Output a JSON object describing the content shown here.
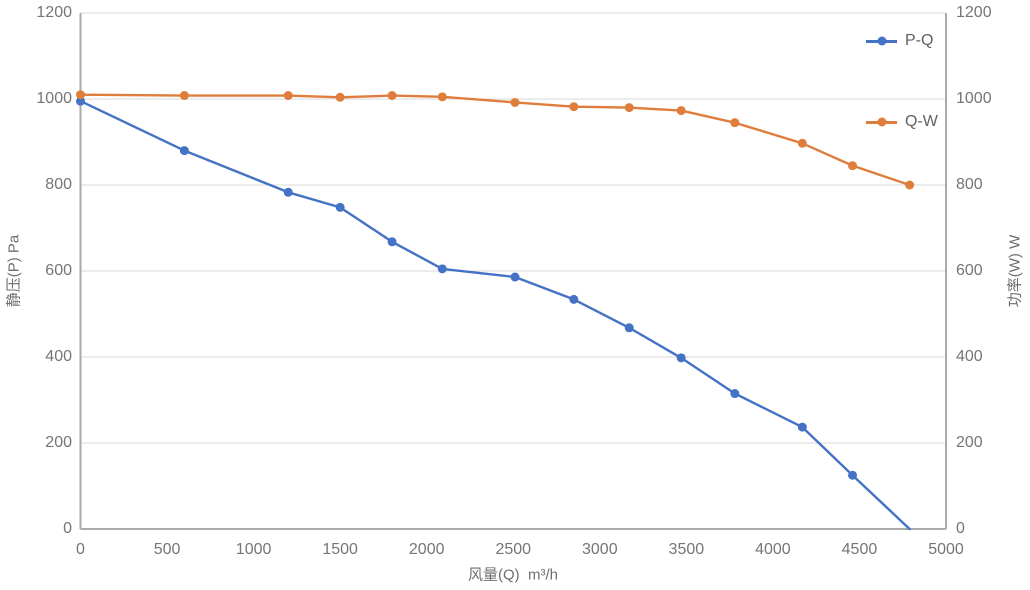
{
  "chart_data": {
    "type": "line",
    "title": "",
    "xlabel": "风量(Q)  m³/h",
    "ylabel_left": "静压(P) Pa",
    "ylabel_right": "功率(W) W",
    "xlim": [
      0,
      5000
    ],
    "ylim_left": [
      0,
      1200
    ],
    "ylim_right": [
      0,
      1200
    ],
    "x_ticks": [
      0,
      500,
      1000,
      1500,
      2000,
      2500,
      3000,
      3500,
      4000,
      4500,
      5000
    ],
    "y_ticks_left": [
      0,
      200,
      400,
      600,
      800,
      1000,
      1200
    ],
    "y_ticks_right": [
      0,
      200,
      400,
      600,
      800,
      1000,
      1200
    ],
    "grid": "horizontal",
    "legend_position": "inside-top-right",
    "x": [
      0,
      600,
      1200,
      1500,
      1800,
      2090,
      2510,
      2850,
      3170,
      3470,
      3780,
      4170,
      4460,
      4790
    ],
    "series": [
      {
        "name": "P-Q",
        "axis": "left",
        "color": "#4472C4",
        "values": [
          995,
          880,
          783,
          748,
          668,
          605,
          586,
          534,
          468,
          398,
          315,
          237,
          125,
          0
        ],
        "marker_on_last_point": false
      },
      {
        "name": "Q-W",
        "axis": "right",
        "color": "#DF7E3C",
        "values": [
          1010,
          1008,
          1008,
          1004,
          1008,
          1005,
          992,
          982,
          980,
          973,
          945,
          897,
          845,
          800
        ],
        "marker_on_last_point": true
      }
    ],
    "colors": {
      "grid": "#D9D9D9",
      "axis": "#ABABAB",
      "tick_text": "#757575"
    }
  }
}
